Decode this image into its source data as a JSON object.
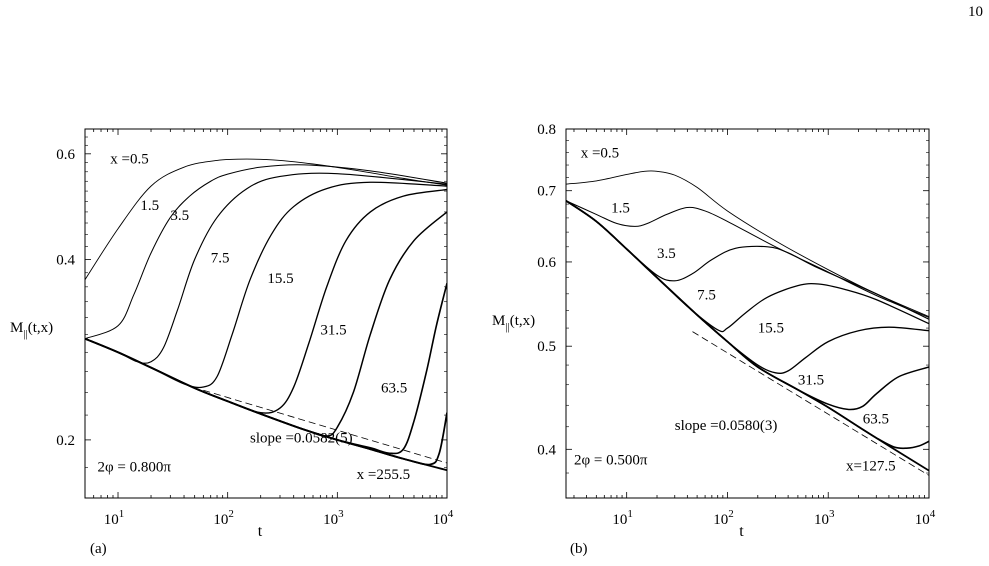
{
  "page_number": "10",
  "chart_data": [
    {
      "panel_label": "(a)",
      "type": "line",
      "scale": "log-log",
      "xlabel": "t",
      "ylabel": {
        "base": "M",
        "sub": "||",
        "rest": "(t,x)"
      },
      "xlim": [
        5,
        10000
      ],
      "ylim": [
        0.16,
        0.66
      ],
      "xticks": [
        10,
        100,
        1000,
        10000
      ],
      "xtick_labels": [
        {
          "base": "10",
          "exp": "1"
        },
        {
          "base": "10",
          "exp": "2"
        },
        {
          "base": "10",
          "exp": "3"
        },
        {
          "base": "10",
          "exp": "4"
        }
      ],
      "yticks": [
        0.2,
        0.4,
        0.6
      ],
      "ytick_labels": [
        "0.2",
        "0.4",
        "0.6"
      ],
      "grid": false,
      "legend": "none",
      "series": [
        {
          "name": "x =0.5",
          "x": [
            5,
            10,
            20,
            40,
            80,
            150,
            300,
            600,
            1500,
            4000,
            10000
          ],
          "y": [
            0.37,
            0.45,
            0.53,
            0.57,
            0.585,
            0.588,
            0.585,
            0.577,
            0.563,
            0.546,
            0.532
          ]
        },
        {
          "name": "1.5",
          "x": [
            5,
            10,
            14,
            20,
            30,
            45,
            70,
            100,
            200,
            500,
            2000,
            10000
          ],
          "y": [
            0.295,
            0.31,
            0.35,
            0.41,
            0.47,
            0.51,
            0.54,
            0.555,
            0.57,
            0.575,
            0.562,
            0.536
          ]
        },
        {
          "name": "3.5",
          "x": [
            5,
            10,
            15,
            20,
            26,
            35,
            50,
            80,
            150,
            300,
            1000,
            10000
          ],
          "y": [
            0.295,
            0.28,
            0.27,
            0.27,
            0.285,
            0.33,
            0.4,
            0.47,
            0.525,
            0.55,
            0.556,
            0.534
          ]
        },
        {
          "name": "7.5",
          "x": [
            5,
            10,
            20,
            40,
            60,
            80,
            110,
            160,
            250,
            400,
            800,
            2000,
            10000
          ],
          "y": [
            0.295,
            0.28,
            0.264,
            0.248,
            0.245,
            0.255,
            0.3,
            0.37,
            0.44,
            0.49,
            0.525,
            0.538,
            0.53
          ]
        },
        {
          "name": "15.5",
          "x": [
            5,
            10,
            20,
            50,
            100,
            200,
            300,
            400,
            550,
            800,
            1200,
            2000,
            4000,
            10000
          ],
          "y": [
            0.295,
            0.28,
            0.264,
            0.244,
            0.232,
            0.222,
            0.226,
            0.245,
            0.29,
            0.36,
            0.43,
            0.48,
            0.51,
            0.523
          ]
        },
        {
          "name": "31.5",
          "x": [
            5,
            10,
            20,
            50,
            100,
            200,
            500,
            800,
            1000,
            1400,
            2000,
            3000,
            5000,
            10000
          ],
          "y": [
            0.295,
            0.28,
            0.264,
            0.244,
            0.232,
            0.221,
            0.208,
            0.203,
            0.21,
            0.24,
            0.3,
            0.37,
            0.43,
            0.48
          ]
        },
        {
          "name": "63.5",
          "x": [
            5,
            10,
            20,
            50,
            100,
            200,
            500,
            1000,
            2000,
            3000,
            4000,
            5000,
            6500,
            8000,
            10000
          ],
          "y": [
            0.295,
            0.28,
            0.264,
            0.244,
            0.232,
            0.221,
            0.208,
            0.2,
            0.194,
            0.19,
            0.193,
            0.215,
            0.26,
            0.31,
            0.365
          ]
        },
        {
          "name": "",
          "x": [
            5,
            10,
            20,
            50,
            100,
            200,
            500,
            1000,
            2000,
            4000,
            7000,
            8500,
            10000
          ],
          "y": [
            0.295,
            0.28,
            0.264,
            0.244,
            0.232,
            0.221,
            0.208,
            0.2,
            0.193,
            0.186,
            0.182,
            0.19,
            0.222
          ]
        },
        {
          "name": "x =255.5",
          "x": [
            5,
            10,
            20,
            50,
            100,
            200,
            500,
            1000,
            2000,
            4000,
            10000
          ],
          "y": [
            0.295,
            0.28,
            0.264,
            0.244,
            0.232,
            0.221,
            0.208,
            0.2,
            0.193,
            0.186,
            0.178
          ]
        }
      ],
      "fit_line": {
        "x": [
          60,
          10000
        ],
        "y": [
          0.242,
          0.183
        ]
      },
      "annotations": [
        {
          "text": "x =0.5",
          "x": 8.5,
          "y": 0.578
        },
        {
          "text": "1.5",
          "x": 16,
          "y": 0.484
        },
        {
          "text": "3.5",
          "x": 30,
          "y": 0.465
        },
        {
          "text": "7.5",
          "x": 70,
          "y": 0.395
        },
        {
          "text": "15.5",
          "x": 230,
          "y": 0.365
        },
        {
          "text": "31.5",
          "x": 700,
          "y": 0.3
        },
        {
          "text": "63.5",
          "x": 2500,
          "y": 0.24
        },
        {
          "text": "slope =0.0582(5)",
          "x": 160,
          "y": 0.198
        },
        {
          "text": "2φ = 0.800π",
          "x": 6.5,
          "y": 0.177
        },
        {
          "text": "x =255.5",
          "x": 1500,
          "y": 0.172
        }
      ]
    },
    {
      "panel_label": "(b)",
      "type": "line",
      "scale": "log-log",
      "xlabel": "t",
      "ylabel": {
        "base": "M",
        "sub": "||",
        "rest": "(t,x)"
      },
      "xlim": [
        2.5,
        10000
      ],
      "ylim": [
        0.36,
        0.8
      ],
      "xticks": [
        10,
        100,
        1000,
        10000
      ],
      "xtick_labels": [
        {
          "base": "10",
          "exp": "1"
        },
        {
          "base": "10",
          "exp": "2"
        },
        {
          "base": "10",
          "exp": "3"
        },
        {
          "base": "10",
          "exp": "4"
        }
      ],
      "yticks": [
        0.4,
        0.5,
        0.6,
        0.7,
        0.8
      ],
      "ytick_labels": [
        "0.4",
        "0.5",
        "0.6",
        "0.7",
        "0.8"
      ],
      "grid": false,
      "legend": "none",
      "series": [
        {
          "name": "x =0.5",
          "x": [
            2.5,
            5,
            10,
            15,
            20,
            30,
            50,
            100,
            300,
            1000,
            3000,
            10000
          ],
          "y": [
            0.71,
            0.715,
            0.725,
            0.73,
            0.73,
            0.724,
            0.705,
            0.67,
            0.628,
            0.59,
            0.56,
            0.533
          ]
        },
        {
          "name": "1.5",
          "x": [
            2.5,
            5,
            8,
            12,
            16,
            25,
            40,
            60,
            100,
            300,
            1000,
            3000,
            10000
          ],
          "y": [
            0.685,
            0.665,
            0.652,
            0.648,
            0.652,
            0.665,
            0.675,
            0.67,
            0.655,
            0.62,
            0.587,
            0.558,
            0.532
          ]
        },
        {
          "name": "3.5",
          "x": [
            2.5,
            5,
            10,
            20,
            30,
            45,
            70,
            120,
            250,
            400,
            800,
            3000,
            10000
          ],
          "y": [
            0.685,
            0.655,
            0.617,
            0.583,
            0.576,
            0.585,
            0.603,
            0.618,
            0.62,
            0.612,
            0.592,
            0.56,
            0.53
          ]
        },
        {
          "name": "7.5",
          "x": [
            2.5,
            5,
            10,
            20,
            40,
            80,
            100,
            150,
            250,
            500,
            800,
            1500,
            3000,
            10000
          ],
          "y": [
            0.685,
            0.655,
            0.617,
            0.58,
            0.545,
            0.518,
            0.52,
            0.537,
            0.556,
            0.57,
            0.572,
            0.565,
            0.553,
            0.525
          ]
        },
        {
          "name": "15.5",
          "x": [
            2.5,
            5,
            10,
            20,
            50,
            100,
            200,
            300,
            400,
            600,
            1000,
            2000,
            4000,
            10000
          ],
          "y": [
            0.685,
            0.655,
            0.617,
            0.58,
            0.535,
            0.505,
            0.48,
            0.472,
            0.474,
            0.488,
            0.505,
            0.517,
            0.521,
            0.517
          ]
        },
        {
          "name": "31.5",
          "x": [
            2.5,
            5,
            10,
            20,
            50,
            100,
            200,
            500,
            1000,
            1600,
            2200,
            3000,
            5000,
            10000
          ],
          "y": [
            0.685,
            0.655,
            0.617,
            0.58,
            0.535,
            0.505,
            0.478,
            0.455,
            0.441,
            0.436,
            0.439,
            0.451,
            0.468,
            0.478
          ]
        },
        {
          "name": "63.5",
          "x": [
            2.5,
            5,
            10,
            20,
            50,
            100,
            200,
            500,
            1000,
            2000,
            3000,
            4500,
            6000,
            8000,
            10000
          ],
          "y": [
            0.685,
            0.655,
            0.617,
            0.58,
            0.535,
            0.505,
            0.478,
            0.455,
            0.438,
            0.42,
            0.41,
            0.402,
            0.401,
            0.403,
            0.407
          ]
        },
        {
          "name": "x=127.5",
          "x": [
            2.5,
            5,
            10,
            20,
            50,
            100,
            200,
            500,
            1000,
            2000,
            4000,
            10000
          ],
          "y": [
            0.685,
            0.655,
            0.617,
            0.58,
            0.535,
            0.505,
            0.478,
            0.455,
            0.438,
            0.42,
            0.403,
            0.382
          ]
        }
      ],
      "fit_line": {
        "x": [
          45,
          10000
        ],
        "y": [
          0.516,
          0.378
        ]
      },
      "annotations": [
        {
          "text": "x =0.5",
          "x": 3.5,
          "y": 0.752
        },
        {
          "text": "1.5",
          "x": 7,
          "y": 0.668
        },
        {
          "text": "3.5",
          "x": 20,
          "y": 0.605
        },
        {
          "text": "7.5",
          "x": 50,
          "y": 0.553
        },
        {
          "text": "15.5",
          "x": 200,
          "y": 0.515
        },
        {
          "text": "31.5",
          "x": 500,
          "y": 0.46
        },
        {
          "text": "63.5",
          "x": 2200,
          "y": 0.423
        },
        {
          "text": "slope =0.0580(3)",
          "x": 30,
          "y": 0.417
        },
        {
          "text": "2φ = 0.500π",
          "x": 3,
          "y": 0.387
        },
        {
          "text": "x=127.5",
          "x": 1500,
          "y": 0.382
        }
      ]
    }
  ]
}
